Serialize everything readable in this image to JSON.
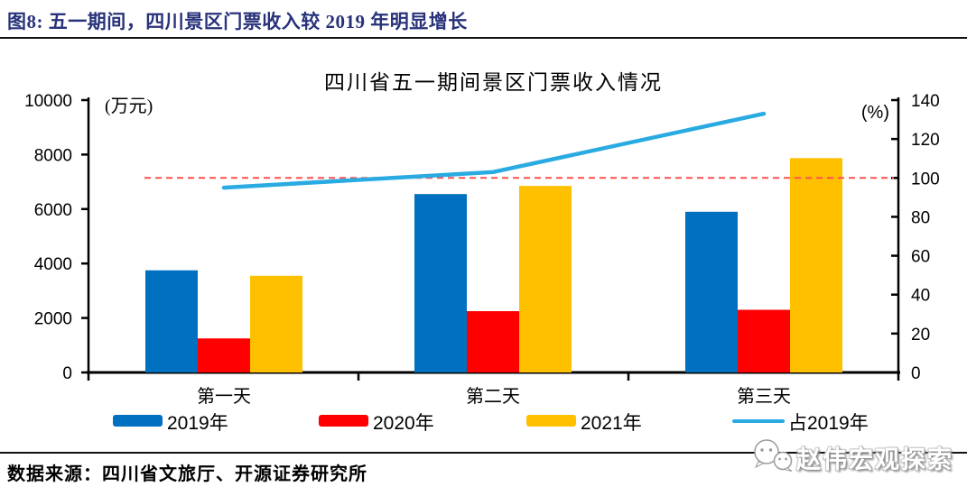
{
  "header": {
    "title": "图8: 五一期间，四川景区门票收入较 2019 年明显增长"
  },
  "chart_data": {
    "type": "bar",
    "title": "四川省五一期间景区门票收入情况",
    "categories": [
      "第一天",
      "第二天",
      "第三天"
    ],
    "series": [
      {
        "name": "2019年",
        "type": "bar",
        "axis": "left",
        "color": "#0070C0",
        "values": [
          3750,
          6550,
          5900
        ]
      },
      {
        "name": "2020年",
        "type": "bar",
        "axis": "left",
        "color": "#FE0000",
        "values": [
          1250,
          2250,
          2300
        ]
      },
      {
        "name": "2021年",
        "type": "bar",
        "axis": "left",
        "color": "#FFC000",
        "values": [
          3550,
          6850,
          7870
        ]
      },
      {
        "name": "占2019年",
        "type": "line",
        "axis": "right",
        "color": "#29ABE2",
        "values": [
          95,
          103,
          133
        ]
      }
    ],
    "reference_line": {
      "axis": "right",
      "value": 100,
      "color": "#FF5050",
      "style": "dashed"
    },
    "left_axis": {
      "label": "(万元)",
      "min": 0,
      "max": 10000,
      "step": 2000,
      "ticks": [
        0,
        2000,
        4000,
        6000,
        8000,
        10000
      ]
    },
    "right_axis": {
      "label": "(%)",
      "min": 0,
      "max": 140,
      "step": 20,
      "ticks": [
        0,
        20,
        40,
        60,
        80,
        100,
        120,
        140
      ]
    },
    "grid": false,
    "legend_position": "bottom",
    "axis_color": "#000000"
  },
  "footer": {
    "source": "数据来源：四川省文旅厅、开源证券研究所",
    "watermark": "赵伟宏观探索",
    "watermark_icon": "wechat-bubbles-icon"
  }
}
